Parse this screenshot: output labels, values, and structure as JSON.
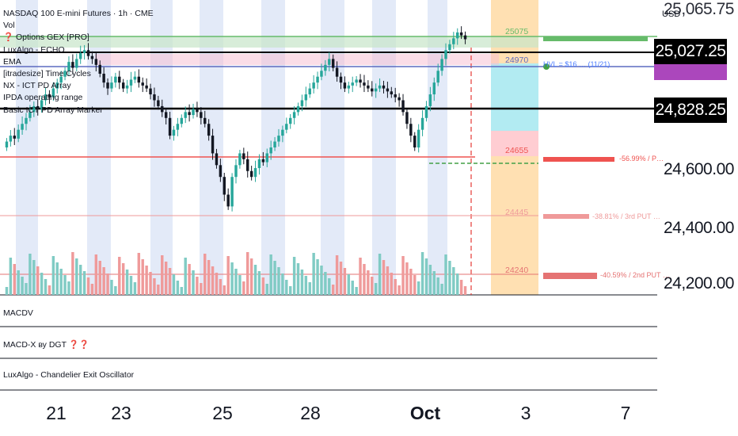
{
  "header": {
    "title": "NASDAQ 100 E-mini Futures · 1h · CME",
    "indicators": [
      "Vol",
      "❓ Options GEX [PRO]",
      "LuxAlgo - ECHO",
      "EMA",
      "[itradesize] Time Cycles",
      "NX - ICT PD Array",
      "IPDA operating range",
      "Basic ICT PD Array Marker"
    ]
  },
  "panes": {
    "macdv": "MACDV",
    "macdx": "MACD-X ву DGT ❓❓",
    "chandelier": "LuxAlgo - Chandelier Exit Oscillator"
  },
  "axis": {
    "currency": "USD",
    "y_ticks": [
      "24,600.00",
      "24,400.00",
      "24,200.00"
    ],
    "x_ticks": [
      "21",
      "23",
      "25",
      "28",
      "Oct",
      "3",
      "7"
    ]
  },
  "price_tags": {
    "upper": "25,027.25",
    "lower": "24,828.25",
    "partial": "25,065.75"
  },
  "gex_levels": [
    {
      "value": "25075",
      "color": "#66bb6a"
    },
    {
      "value": "24970",
      "color": "#5c6bc0"
    },
    {
      "value": "24655",
      "color": "#ef5350"
    },
    {
      "value": "24445",
      "color": "#ef9a9a"
    },
    {
      "value": "24240",
      "color": "#e57373"
    }
  ],
  "gex_labels": {
    "hvl": "HVL = $16 … (11/21)",
    "put1": "-56.99% / P…",
    "put3": "-38.81% / 3rd PUT …",
    "put2": "-40.59% / 2nd PUT …"
  },
  "colors": {
    "up": "#26a69a",
    "down": "#131722",
    "volume_up": "#80cbc4",
    "volume_down": "#ef9a9a",
    "cycle_band": "#e3eaf8",
    "orange_zone": "#ffe0b2",
    "cyan_zone": "#b2ebf2",
    "red_zone": "#ffcdd2"
  },
  "chart_data": {
    "type": "candlestick",
    "title": "NASDAQ 100 E-mini Futures · 1h · CME",
    "ylim": [
      24160,
      25160
    ],
    "x_labels": [
      "21",
      "23",
      "25",
      "28",
      "Oct",
      "3",
      "7"
    ],
    "last_price": 25027.25,
    "series": [
      {
        "close": [
          24680,
          24700,
          24690,
          24720,
          24740,
          24760,
          24780,
          24800,
          24790,
          24820,
          24840,
          24830,
          24860,
          24880,
          24900,
          24920,
          24950,
          24930,
          24960,
          24980,
          24990,
          24970,
          24960,
          24940,
          24910,
          24880,
          24860,
          24880,
          24900,
          24880,
          24860,
          24870,
          24890,
          24900,
          24880,
          24870,
          24860,
          24840,
          24820,
          24800,
          24780,
          24760,
          24700,
          24720,
          24740,
          24760,
          24780,
          24770,
          24790,
          24780,
          24760,
          24740,
          24700,
          24640,
          24600,
          24560,
          24500,
          24460,
          24560,
          24600,
          24640,
          24620,
          24580,
          24560,
          24590,
          24620,
          24610,
          24640,
          24660,
          24680,
          24700,
          24720,
          24740,
          24760,
          24780,
          24800,
          24820,
          24840,
          24860,
          24880,
          24900,
          24920,
          24940,
          24960,
          24930,
          24900,
          24880,
          24860,
          24870,
          24880,
          24890,
          24880,
          24870,
          24860,
          24850,
          24860,
          24870,
          24860,
          24850,
          24840,
          24830,
          24820,
          24780,
          24740,
          24700,
          24660,
          24720,
          24760,
          24800,
          24840,
          24880,
          24920,
          24960,
          24990,
          25010,
          25030,
          25050,
          25040,
          25027
        ]
      }
    ]
  }
}
